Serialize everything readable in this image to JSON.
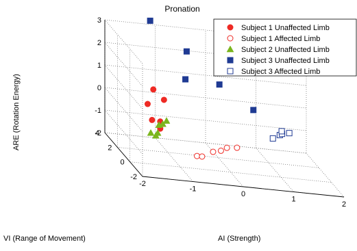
{
  "chart_data": {
    "type": "scatter",
    "title": "Pronation",
    "xlabel": "AI (Strength)",
    "ylabel": "VI (Range of Movement)",
    "zlabel": "ARE (Rotation Energy)",
    "xlim": [
      -2,
      2
    ],
    "ylim": [
      -2,
      4
    ],
    "zlim": [
      -2,
      3
    ],
    "x_ticks": [
      "-2",
      "-1",
      "0",
      "1",
      "2"
    ],
    "y_ticks": [
      "-2",
      "0",
      "2",
      "4"
    ],
    "z_ticks": [
      "-2",
      "-1",
      "0",
      "1",
      "2",
      "3"
    ],
    "grid": true,
    "legend_position": "top-right",
    "series": [
      {
        "name": "Subject 1 Unaffected Limb",
        "marker": "filled-circle",
        "color": "#ee2a24",
        "points": [
          [
            -1.15,
            3.1,
            0.4
          ],
          [
            -1.25,
            3.2,
            -0.3
          ],
          [
            -1.2,
            2.9,
            -0.9
          ],
          [
            -1.05,
            2.8,
            -0.9
          ],
          [
            -1.1,
            2.4,
            -1.1
          ],
          [
            -0.9,
            3.4,
            -0.1
          ]
        ]
      },
      {
        "name": "Subject 1  Affected Limb",
        "marker": "open-circle",
        "color": "#ee2a24",
        "points": [
          [
            -0.6,
            0.55,
            -1.6
          ],
          [
            -0.5,
            0.55,
            -1.6
          ],
          [
            -0.3,
            0.4,
            -1.3
          ],
          [
            -0.15,
            0.35,
            -1.2
          ],
          [
            -0.05,
            0.2,
            -1.0
          ],
          [
            0.15,
            0.2,
            -0.95
          ]
        ]
      },
      {
        "name": "Subject 2 Unaffected Limb",
        "marker": "filled-triangle",
        "color": "#7ab51d",
        "points": [
          [
            -1.3,
            2.3,
            -1.3
          ],
          [
            -1.2,
            2.3,
            -1.4
          ],
          [
            -1.15,
            2.4,
            -1.3
          ],
          [
            -1.1,
            2.6,
            -1.0
          ],
          [
            -1.0,
            2.8,
            -1.0
          ],
          [
            -0.9,
            3.0,
            -0.9
          ]
        ]
      },
      {
        "name": "Subject 3 Unaffected Limb",
        "marker": "filled-square",
        "color": "#1f3a93",
        "points": [
          [
            -1.2,
            3.2,
            3.4
          ],
          [
            -0.6,
            2.2,
            2.5
          ],
          [
            -0.6,
            2.4,
            1.2
          ],
          [
            0.0,
            1.8,
            1.3
          ],
          [
            0.6,
            1.2,
            0.5
          ]
        ]
      },
      {
        "name": "Subject 3  Affected Limb",
        "marker": "open-square",
        "color": "#1f3a93",
        "points": [
          [
            1.0,
            1.3,
            -0.7
          ],
          [
            1.15,
            1.4,
            -0.55
          ],
          [
            1.2,
            1.45,
            -0.5
          ],
          [
            1.2,
            1.5,
            -0.4
          ],
          [
            1.35,
            1.5,
            -0.45
          ]
        ]
      }
    ]
  }
}
